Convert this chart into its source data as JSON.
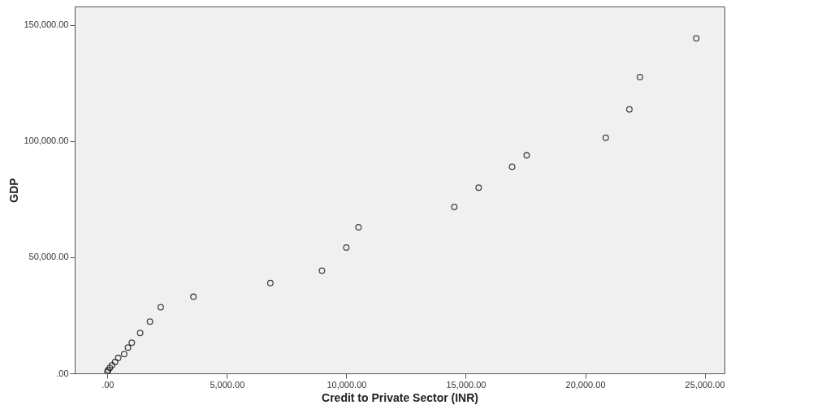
{
  "chart_data": {
    "type": "scatter",
    "xlabel": "Credit to Private Sector (INR)",
    "ylabel": "GDP",
    "x": [
      24650,
      22290,
      21850,
      20860,
      17550,
      16940,
      15540,
      14520,
      10510,
      10000,
      8980,
      6820,
      3600,
      2230,
      1780,
      1370,
      1020,
      860,
      700,
      450,
      320,
      190,
      100,
      30,
      0
    ],
    "values": [
      144300,
      127600,
      113700,
      101500,
      93900,
      89000,
      80000,
      71700,
      62900,
      54200,
      44200,
      38900,
      33000,
      28500,
      22300,
      17400,
      13200,
      11100,
      8300,
      6600,
      4900,
      3500,
      2400,
      1400,
      700
    ],
    "color": "#000000",
    "marker": "circle",
    "grid": false,
    "xlim": [
      -1370,
      25830
    ],
    "ylim": [
      0,
      158000
    ],
    "xticks": [
      {
        "value": 0,
        "label": ".00"
      },
      {
        "value": 5000,
        "label": "5,000.00"
      },
      {
        "value": 10000,
        "label": "10,000.00"
      },
      {
        "value": 15000,
        "label": "15,000.00"
      },
      {
        "value": 20000,
        "label": "20,000.00"
      },
      {
        "value": 25000,
        "label": "25,000.00"
      }
    ],
    "yticks": [
      {
        "value": 0,
        "label": ".00"
      },
      {
        "value": 50000,
        "label": "50,000.00"
      },
      {
        "value": 100000,
        "label": "100,000.00"
      },
      {
        "value": 150000,
        "label": "150,000.00"
      }
    ]
  }
}
